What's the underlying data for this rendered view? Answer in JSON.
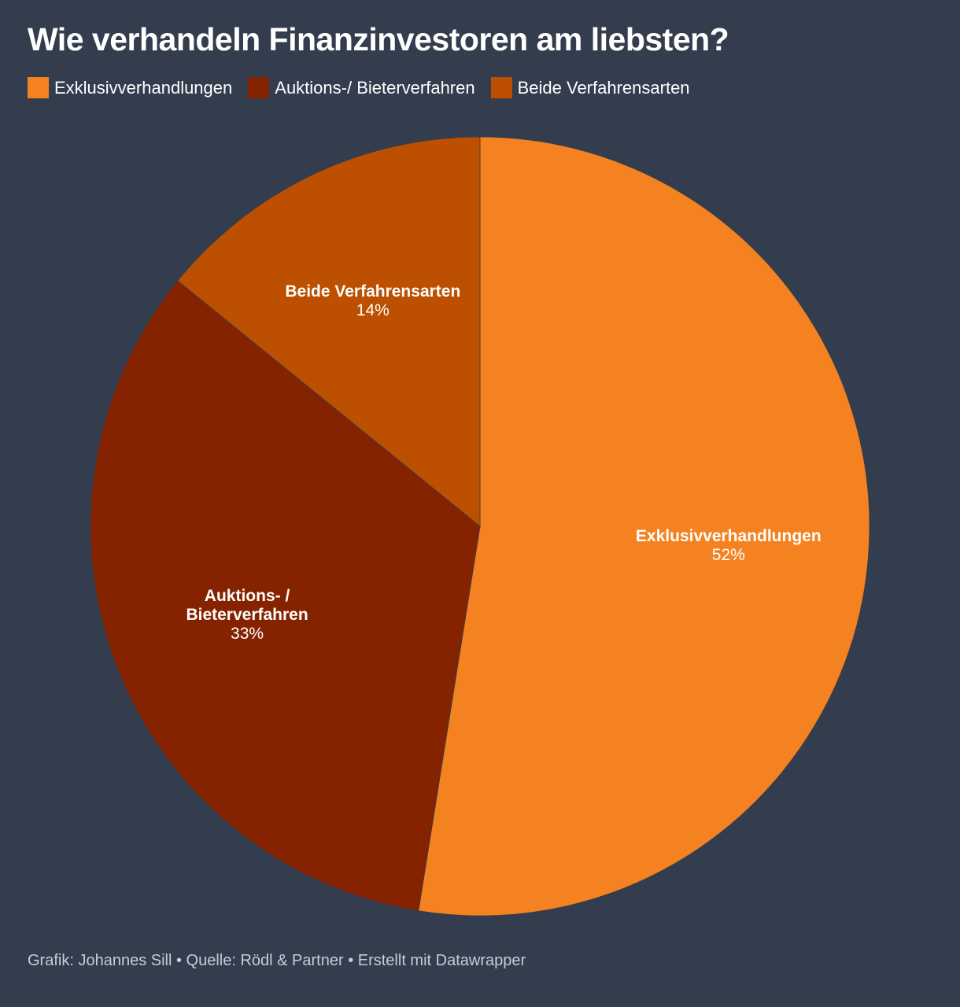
{
  "title": "Wie verhandeln Finanzinvestoren am liebsten?",
  "legend": [
    {
      "label": "Exklusivverhandlungen",
      "color": "#f58220"
    },
    {
      "label": "Auktions-/ Bieterverfahren",
      "color": "#852300"
    },
    {
      "label": "Beide Verfahrensarten",
      "color": "#bc4f00"
    }
  ],
  "footer": "Grafik: Johannes Sill • Quelle: Rödl & Partner • Erstellt mit Datawrapper",
  "chart_data": {
    "type": "pie",
    "title": "Wie verhandeln Finanzinvestoren am liebsten?",
    "slices": [
      {
        "label": "Exklusivverhandlungen",
        "label_lines": [
          "Exklusivverhandlungen"
        ],
        "value": 52,
        "display": "52%",
        "color": "#f58220"
      },
      {
        "label": "Auktions-/ Bieterverfahren",
        "label_lines": [
          "Auktions- /",
          "Bieterverfahren"
        ],
        "value": 33,
        "display": "33%",
        "color": "#852300"
      },
      {
        "label": "Beide Verfahrensarten",
        "label_lines": [
          "Beide Verfahrensarten"
        ],
        "value": 14,
        "display": "14%",
        "color": "#bc4f00"
      }
    ],
    "legend_position": "top-left"
  }
}
